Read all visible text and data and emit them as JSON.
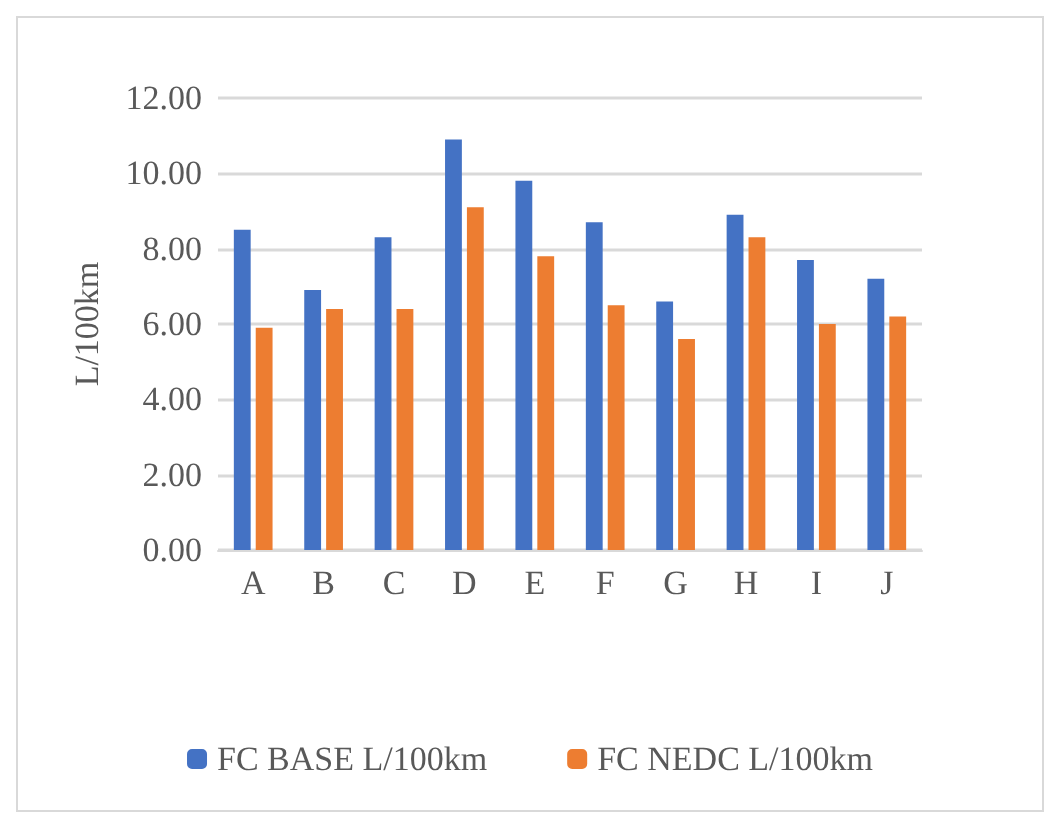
{
  "chart_data": {
    "type": "bar",
    "ylabel": "L/100km",
    "categories": [
      "A",
      "B",
      "C",
      "D",
      "E",
      "F",
      "G",
      "H",
      "I",
      "J"
    ],
    "series": [
      {
        "name": "FC BASE L/100km",
        "color": "#4472c4",
        "values": [
          8.5,
          6.9,
          8.3,
          10.9,
          9.8,
          8.7,
          6.6,
          8.9,
          7.7,
          7.2
        ]
      },
      {
        "name": "FC NEDC L/100km",
        "color": "#ed7d31",
        "values": [
          5.9,
          6.4,
          6.4,
          9.1,
          7.8,
          6.5,
          5.6,
          8.3,
          6.0,
          6.2
        ]
      }
    ],
    "ylim": [
      0,
      12
    ],
    "yticks": [
      {
        "value": 0,
        "label": "0.00"
      },
      {
        "value": 2,
        "label": "2.00"
      },
      {
        "value": 4,
        "label": "4.00"
      },
      {
        "value": 6,
        "label": "6.00"
      },
      {
        "value": 8,
        "label": "8.00"
      },
      {
        "value": 10,
        "label": "10.00"
      },
      {
        "value": 12,
        "label": "12.00"
      }
    ],
    "grid": "y",
    "legend": "bottom"
  }
}
